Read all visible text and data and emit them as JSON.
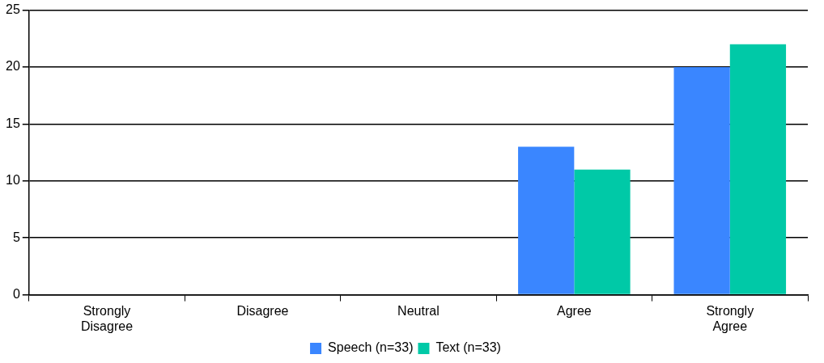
{
  "chart_data": {
    "type": "bar",
    "categories": [
      "Strongly Disagree",
      "Disagree",
      "Neutral",
      "Agree",
      "Strongly Agree"
    ],
    "series": [
      {
        "name": "Speech (n=33)",
        "color": "#3a86ff",
        "values": [
          0,
          0,
          0,
          13,
          20
        ]
      },
      {
        "name": "Text (n=33)",
        "color": "#00c9a7",
        "values": [
          0,
          0,
          0,
          11,
          22
        ]
      }
    ],
    "ylim": [
      0,
      25
    ],
    "yticks": [
      0,
      5,
      10,
      15,
      20,
      25
    ],
    "grid": "y",
    "legend": "bottom"
  }
}
